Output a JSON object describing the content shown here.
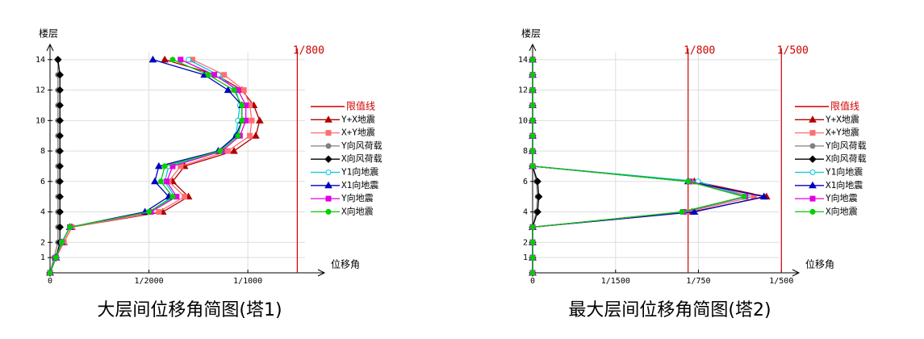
{
  "chart_data": [
    {
      "type": "line",
      "title": "大层间位移角简图(塔1)",
      "y_label": "楼层",
      "x_label": "位移角",
      "floors": [
        0,
        1,
        2,
        3,
        4,
        5,
        6,
        7,
        8,
        9,
        10,
        11,
        12,
        13,
        14
      ],
      "xlim": [
        0,
        0.00133
      ],
      "ylim": [
        0,
        15
      ],
      "grid": true,
      "xticks": [
        0,
        {
          "value": 0.0005,
          "label": "1/2000"
        },
        {
          "value": 0.001,
          "label": "1/1000"
        }
      ],
      "yticks": [
        1,
        2,
        4,
        6,
        8,
        10,
        12,
        14
      ],
      "limit_legend": "限值线",
      "limit_color": "#d00000",
      "limits": [
        {
          "value": 0.00125,
          "label": "1/800"
        }
      ],
      "series": [
        {
          "name": "Y+X地震",
          "color": "#b00000",
          "marker": "triangle",
          "values": [
            0,
            3e-05,
            7e-05,
            0.00011,
            0.00057,
            0.0007,
            0.00062,
            0.00068,
            0.00093,
            0.00104,
            0.00106,
            0.00103,
            0.00097,
            0.00084,
            0.00058
          ]
        },
        {
          "name": "X+Y地震",
          "color": "#ff6f6f",
          "marker": "square",
          "values": [
            0,
            3e-05,
            7e-05,
            0.00011,
            0.00055,
            0.00068,
            0.0006,
            0.00066,
            0.0009,
            0.00101,
            0.00102,
            0.00101,
            0.00098,
            0.00088,
            0.00072
          ]
        },
        {
          "name": "Y向风荷载",
          "color": "#808080",
          "marker": "dot",
          "values": [
            0,
            2e-05,
            4e-05,
            4e-05,
            4e-05,
            4e-05,
            4e-05,
            4e-05,
            4e-05,
            4e-05,
            4e-05,
            4e-05,
            4e-05,
            4e-05,
            4e-05
          ]
        },
        {
          "name": "X向风荷载",
          "color": "#000000",
          "marker": "diamond",
          "values": [
            0,
            3e-05,
            5e-05,
            5e-05,
            5e-05,
            5e-05,
            5e-05,
            5e-05,
            5e-05,
            5e-05,
            5e-05,
            5e-05,
            5e-05,
            5e-05,
            4e-05
          ]
        },
        {
          "name": "Y1向地震",
          "color": "#00c8e0",
          "marker": "circle",
          "values": [
            0,
            3e-05,
            6e-05,
            0.0001,
            0.0005,
            0.00063,
            0.00058,
            0.0006,
            0.00086,
            0.00094,
            0.00095,
            0.00096,
            0.00094,
            0.00085,
            0.0007
          ]
        },
        {
          "name": "X1向地震",
          "color": "#0000c0",
          "marker": "triangle",
          "values": [
            0,
            3e-05,
            6e-05,
            0.0001,
            0.00048,
            0.0006,
            0.00053,
            0.00055,
            0.00085,
            0.00094,
            0.00097,
            0.00097,
            0.0009,
            0.00078,
            0.00052
          ]
        },
        {
          "name": "Y向地震",
          "color": "#e000e0",
          "marker": "square",
          "values": [
            0,
            3e-05,
            6e-05,
            0.0001,
            0.00051,
            0.00064,
            0.00059,
            0.00062,
            0.00087,
            0.00096,
            0.00099,
            0.00099,
            0.00095,
            0.00083,
            0.00066
          ]
        },
        {
          "name": "X向地震",
          "color": "#00d000",
          "marker": "dot",
          "values": [
            0,
            3e-05,
            6e-05,
            0.0001,
            0.0005,
            0.00062,
            0.00056,
            0.00058,
            0.00086,
            0.00095,
            0.00097,
            0.00097,
            0.00093,
            0.0008,
            0.00062
          ]
        }
      ]
    },
    {
      "type": "line",
      "title": "最大层间位移角简图(塔2)",
      "y_label": "楼层",
      "x_label": "位移角",
      "floors": [
        0,
        1,
        2,
        3,
        4,
        5,
        6,
        7,
        8,
        9,
        10,
        11,
        12,
        13,
        14
      ],
      "xlim": [
        0,
        0.00205
      ],
      "ylim": [
        0,
        15
      ],
      "grid": true,
      "xticks": [
        0,
        {
          "value": 0.000667,
          "label": "1/1500"
        },
        {
          "value": 0.001333,
          "label": "1/750"
        },
        {
          "value": 0.002,
          "label": "1/500"
        }
      ],
      "yticks": [
        1,
        2,
        4,
        6,
        8,
        10,
        12,
        14
      ],
      "limit_legend": "限值线",
      "limit_color": "#d00000",
      "limits": [
        {
          "value": 0.00125,
          "label": "1/800"
        },
        {
          "value": 0.002,
          "label": "1/500"
        }
      ],
      "series": [
        {
          "name": "Y+X地震",
          "color": "#b00000",
          "marker": "triangle",
          "values": [
            0,
            0,
            0,
            0,
            0.00128,
            0.00188,
            0.0013,
            0,
            0,
            0,
            0,
            0,
            0,
            0,
            0
          ]
        },
        {
          "name": "X+Y地震",
          "color": "#ff6f6f",
          "marker": "square",
          "values": [
            0,
            0,
            0,
            0,
            0.00124,
            0.00178,
            0.00127,
            0,
            0,
            0,
            0,
            0,
            0,
            0,
            0
          ]
        },
        {
          "name": "Y向风荷载",
          "color": "#808080",
          "marker": "dot",
          "values": [
            0,
            0,
            0,
            0,
            3e-05,
            4e-05,
            3e-05,
            0,
            0,
            0,
            0,
            0,
            0,
            0,
            0
          ]
        },
        {
          "name": "X向风荷载",
          "color": "#000000",
          "marker": "diamond",
          "values": [
            0,
            0,
            0,
            0,
            4e-05,
            5e-05,
            4e-05,
            0,
            0,
            0,
            0,
            0,
            0,
            0,
            0
          ]
        },
        {
          "name": "Y1向地震",
          "color": "#00c8e0",
          "marker": "circle",
          "values": [
            0,
            0,
            0,
            0,
            0.00122,
            0.00172,
            0.00133,
            0,
            0,
            0,
            0,
            0,
            0,
            0,
            0
          ]
        },
        {
          "name": "X1向地震",
          "color": "#0000c0",
          "marker": "triangle",
          "values": [
            0,
            0,
            0,
            0,
            0.0013,
            0.00186,
            0.00125,
            0,
            0,
            0,
            0,
            0,
            0,
            0,
            0
          ]
        },
        {
          "name": "Y向地震",
          "color": "#e000e0",
          "marker": "square",
          "values": [
            0,
            0,
            0,
            0,
            0.00121,
            0.00171,
            0.00126,
            0,
            0,
            0,
            0,
            0,
            0,
            0,
            0
          ]
        },
        {
          "name": "X向地震",
          "color": "#00d000",
          "marker": "dot",
          "values": [
            0,
            0,
            0,
            0,
            0.0012,
            0.0017,
            0.00125,
            0,
            0,
            0,
            0,
            0,
            0,
            0,
            0
          ]
        }
      ]
    }
  ]
}
